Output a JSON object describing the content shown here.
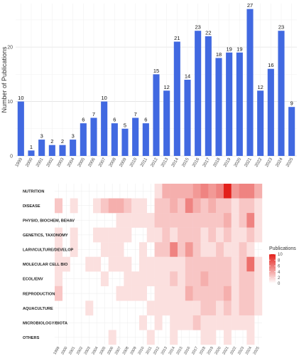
{
  "chart_data": [
    {
      "type": "bar",
      "ylabel": "Number of Publications",
      "xlabel": "",
      "ylim": [
        0,
        28
      ],
      "yticks": [
        0,
        10,
        20
      ],
      "grid": true,
      "bar_color": "#4169e1",
      "categories": [
        "1999",
        "2000",
        "2001",
        "2002",
        "2003",
        "2004",
        "2005",
        "2006",
        "2007",
        "2008",
        "2009",
        "2010",
        "2011",
        "2012",
        "2013",
        "2014",
        "2015",
        "2016",
        "2017",
        "2018",
        "2019",
        "2020",
        "2021",
        "2022",
        "2023",
        "2024",
        "2025"
      ],
      "values": [
        10,
        1,
        3,
        2,
        2,
        3,
        6,
        7,
        10,
        6,
        5,
        7,
        6,
        15,
        12,
        21,
        14,
        23,
        22,
        18,
        19,
        19,
        27,
        12,
        16,
        23,
        9
      ]
    },
    {
      "type": "heatmap",
      "legend_title": "Publications",
      "legend_ticks": [
        0,
        2,
        4,
        6,
        8,
        10
      ],
      "legend_position": "right",
      "color_low": "#ffffff",
      "color_high": "#e3201b",
      "vmax": 10,
      "rows": [
        "NUTRITION",
        "DISEASE",
        "PHYSIO, BIOCHEM, BEHAV",
        "GENETICS, TAXONOMY",
        "LARVICULTURE/DEVELOP",
        "MOLECULAR CELL BIO",
        "ECOL/ENV",
        "REPRODUCTION",
        "AQUACULTURE",
        "MICROBIOLOGY/BIOTA",
        "OTHERS"
      ],
      "columns": [
        "1999",
        "2000",
        "2001",
        "2002",
        "2003",
        "2004",
        "2005",
        "2006",
        "2007",
        "2008",
        "2009",
        "2010",
        "2011",
        "2012",
        "2013",
        "2014",
        "2015",
        "2016",
        "2017",
        "2018",
        "2019",
        "2020",
        "2021",
        "2022",
        "2023",
        "2024",
        "2025"
      ],
      "values": [
        [
          0,
          0,
          0,
          0,
          0,
          0,
          0,
          0,
          0,
          0,
          0,
          0,
          0,
          1,
          3,
          3,
          3,
          3,
          4,
          5,
          4,
          5,
          10,
          4,
          5,
          5,
          3
        ],
        [
          2,
          0,
          1,
          0,
          0,
          1,
          2,
          3,
          3,
          2,
          1,
          1,
          0,
          2,
          2,
          3,
          2,
          5,
          3,
          2,
          3,
          2,
          2,
          1,
          2,
          2,
          1
        ],
        [
          0,
          0,
          0,
          0,
          0,
          0,
          0,
          0,
          1,
          1,
          1,
          1,
          1,
          2,
          2,
          2,
          2,
          2,
          2,
          2,
          2,
          2,
          3,
          1,
          2,
          5,
          1
        ],
        [
          1,
          0,
          1,
          0,
          0,
          1,
          1,
          1,
          1,
          1,
          0,
          0,
          1,
          1,
          2,
          1,
          2,
          2,
          2,
          1,
          2,
          1,
          2,
          1,
          1,
          2,
          1
        ],
        [
          1,
          0,
          1,
          0,
          0,
          0,
          1,
          1,
          1,
          0,
          0,
          1,
          0,
          2,
          2,
          5,
          2,
          4,
          2,
          1,
          1,
          2,
          1,
          1,
          2,
          1,
          0
        ],
        [
          1,
          1,
          0,
          0,
          1,
          1,
          0,
          1,
          1,
          1,
          0,
          1,
          1,
          1,
          1,
          1,
          1,
          2,
          2,
          2,
          2,
          2,
          2,
          1,
          2,
          6,
          1
        ],
        [
          1,
          0,
          0,
          0,
          0,
          0,
          1,
          0,
          0,
          1,
          1,
          1,
          1,
          1,
          1,
          2,
          1,
          2,
          2,
          3,
          2,
          2,
          2,
          1,
          2,
          2,
          1
        ],
        [
          2,
          0,
          0,
          0,
          0,
          0,
          0,
          0,
          1,
          1,
          1,
          1,
          0,
          1,
          1,
          1,
          1,
          3,
          2,
          2,
          2,
          2,
          3,
          1,
          2,
          2,
          1
        ],
        [
          0,
          0,
          0,
          0,
          1,
          0,
          0,
          0,
          0,
          0,
          0,
          0,
          1,
          1,
          1,
          1,
          1,
          1,
          1,
          2,
          2,
          1,
          2,
          1,
          2,
          2,
          1
        ],
        [
          0,
          0,
          0,
          0,
          0,
          0,
          0,
          0,
          0,
          0,
          0,
          1,
          0,
          1,
          0,
          1,
          1,
          1,
          2,
          1,
          1,
          1,
          1,
          1,
          1,
          1,
          0
        ],
        [
          0,
          0,
          0,
          0,
          0,
          0,
          0,
          1,
          0,
          0,
          0,
          0,
          1,
          0,
          0,
          1,
          0,
          0,
          0,
          1,
          1,
          0,
          1,
          0,
          0,
          1,
          0
        ]
      ]
    }
  ]
}
